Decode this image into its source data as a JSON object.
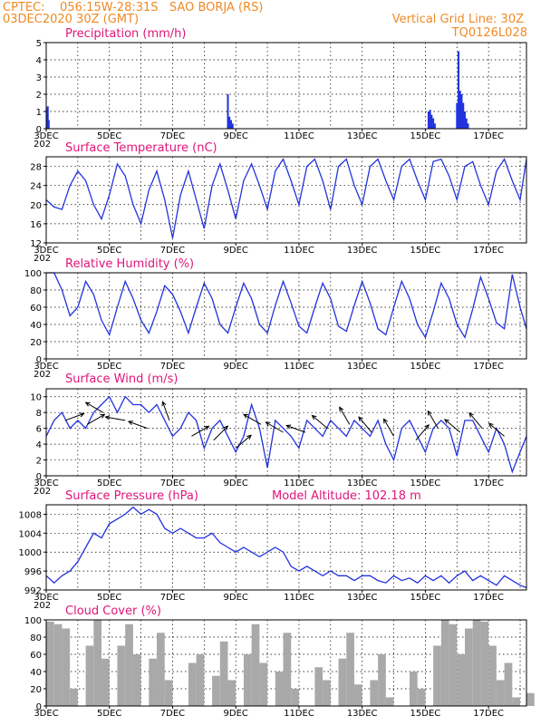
{
  "header": {
    "left_line1": "CPTEC:    056:15W-28:31S   SAO BORJA (RS)",
    "left_line2": "03DEC2020 30Z (GMT)",
    "right_line1": "Vertical Grid Line: 30Z",
    "right_line2": "TQ0126L028"
  },
  "x_axis": {
    "ticks": [
      "3DEC",
      "5DEC",
      "7DEC",
      "9DEC",
      "11DEC",
      "13DEC",
      "15DEC",
      "17DEC"
    ],
    "tick_days": [
      0,
      2,
      4,
      6,
      8,
      10,
      12,
      14
    ],
    "range_days": [
      0,
      15.2
    ],
    "grid_every_days": 1,
    "year_fragment": "202"
  },
  "colors": {
    "series": "#2233dd",
    "cloud": "#a9a9a9",
    "title": "#e0157a",
    "header": "#f08a24"
  },
  "chart_data": [
    {
      "id": "precip",
      "type": "bar",
      "title": "Precipitation (mm/h)",
      "ylim": [
        0,
        5
      ],
      "yticks": [
        0,
        1,
        2,
        3,
        4,
        5
      ],
      "x": [
        0.02,
        0.05,
        0.08,
        5.75,
        5.8,
        5.85,
        5.9,
        12.1,
        12.15,
        12.2,
        12.25,
        12.3,
        13.0,
        13.05,
        13.1,
        13.15,
        13.2,
        13.25,
        13.3,
        13.35
      ],
      "values": [
        1.2,
        1.3,
        0.5,
        2.0,
        0.7,
        0.5,
        0.3,
        1.0,
        1.1,
        0.8,
        0.6,
        0.3,
        1.5,
        4.5,
        2.2,
        2.0,
        1.5,
        1.0,
        0.6,
        0.3
      ]
    },
    {
      "id": "temp",
      "type": "line",
      "title": "Surface Temperature (nC)",
      "ylim": [
        12,
        30
      ],
      "yticks": [
        12,
        16,
        20,
        24,
        28
      ],
      "x": [
        0,
        0.25,
        0.5,
        0.75,
        1,
        1.25,
        1.5,
        1.75,
        2,
        2.25,
        2.5,
        2.75,
        3,
        3.25,
        3.5,
        3.75,
        4,
        4.25,
        4.5,
        4.75,
        5,
        5.25,
        5.5,
        5.75,
        6,
        6.25,
        6.5,
        6.75,
        7,
        7.25,
        7.5,
        7.75,
        8,
        8.25,
        8.5,
        8.75,
        9,
        9.25,
        9.5,
        9.75,
        10,
        10.25,
        10.5,
        10.75,
        11,
        11.25,
        11.5,
        11.75,
        12,
        12.25,
        12.5,
        12.75,
        13,
        13.25,
        13.5,
        13.75,
        14,
        14.25,
        14.5,
        14.75,
        15,
        15.2
      ],
      "values": [
        21,
        19.5,
        19,
        24,
        27,
        25,
        20,
        17,
        22,
        28.5,
        26,
        20,
        16,
        23,
        27,
        21,
        13,
        22,
        27,
        21,
        15,
        24,
        28.5,
        23,
        17,
        25,
        28.5,
        24,
        19,
        27,
        29.5,
        25,
        20,
        28,
        29.5,
        25,
        19,
        28,
        29.5,
        24,
        20,
        28,
        29.5,
        25,
        21,
        28,
        29.5,
        25,
        21,
        29,
        29.5,
        26,
        21,
        28,
        29,
        24,
        20,
        27,
        29.5,
        25,
        21,
        29.5
      ]
    },
    {
      "id": "rh",
      "type": "line",
      "title": "Relative Humidity (%)",
      "ylim": [
        0,
        100
      ],
      "yticks": [
        0,
        20,
        40,
        60,
        80,
        100
      ],
      "x": [
        0,
        0.25,
        0.5,
        0.75,
        1,
        1.25,
        1.5,
        1.75,
        2,
        2.25,
        2.5,
        2.75,
        3,
        3.25,
        3.5,
        3.75,
        4,
        4.25,
        4.5,
        4.75,
        5,
        5.25,
        5.5,
        5.75,
        6,
        6.25,
        6.5,
        6.75,
        7,
        7.25,
        7.5,
        7.75,
        8,
        8.25,
        8.5,
        8.75,
        9,
        9.25,
        9.5,
        9.75,
        10,
        10.25,
        10.5,
        10.75,
        11,
        11.25,
        11.5,
        11.75,
        12,
        12.25,
        12.5,
        12.75,
        13,
        13.25,
        13.5,
        13.75,
        14,
        14.25,
        14.5,
        14.75,
        15,
        15.2
      ],
      "values": [
        100,
        100,
        80,
        50,
        60,
        90,
        75,
        45,
        28,
        60,
        90,
        70,
        45,
        30,
        55,
        85,
        75,
        55,
        30,
        60,
        88,
        70,
        40,
        30,
        60,
        88,
        70,
        40,
        30,
        62,
        90,
        65,
        38,
        30,
        60,
        88,
        70,
        38,
        32,
        62,
        90,
        65,
        35,
        28,
        60,
        90,
        70,
        40,
        25,
        55,
        88,
        70,
        40,
        25,
        58,
        95,
        70,
        42,
        35,
        98,
        60,
        35
      ]
    },
    {
      "id": "wind",
      "type": "line",
      "title": "Surface Wind (m/s)",
      "ylim": [
        0,
        11
      ],
      "yticks": [
        0,
        2,
        4,
        6,
        8,
        10
      ],
      "x": [
        0,
        0.25,
        0.5,
        0.75,
        1,
        1.25,
        1.5,
        1.75,
        2,
        2.25,
        2.5,
        2.75,
        3,
        3.25,
        3.5,
        3.75,
        4,
        4.25,
        4.5,
        4.75,
        5,
        5.25,
        5.5,
        5.75,
        6,
        6.25,
        6.5,
        6.75,
        7,
        7.25,
        7.5,
        7.75,
        8,
        8.25,
        8.5,
        8.75,
        9,
        9.25,
        9.5,
        9.75,
        10,
        10.25,
        10.5,
        10.75,
        11,
        11.25,
        11.5,
        11.75,
        12,
        12.25,
        12.5,
        12.75,
        13,
        13.25,
        13.5,
        13.75,
        14,
        14.25,
        14.5,
        14.75,
        15,
        15.2
      ],
      "values": [
        5,
        7,
        8,
        6,
        7,
        6,
        8,
        9,
        10,
        8,
        10,
        9,
        9,
        8,
        9,
        7,
        5,
        6,
        8,
        7,
        3.5,
        6,
        7,
        5,
        3,
        5,
        9,
        6,
        1,
        7,
        6,
        5,
        3.5,
        7,
        6,
        5,
        7,
        6,
        5,
        7,
        6,
        5,
        7,
        4,
        2,
        6,
        7,
        5,
        3,
        6,
        7,
        6,
        2.5,
        7,
        7,
        5,
        3,
        6,
        4,
        0.5,
        3,
        5
      ]
    },
    {
      "id": "pressure",
      "type": "line",
      "title": "Surface Pressure (hPa)",
      "annotation": "Model Altitude: 102.18 m",
      "ylim": [
        992,
        1010
      ],
      "yticks": [
        992,
        996,
        1000,
        1004,
        1008
      ],
      "x": [
        0,
        0.25,
        0.5,
        0.75,
        1,
        1.25,
        1.5,
        1.75,
        2,
        2.25,
        2.5,
        2.75,
        3,
        3.25,
        3.5,
        3.75,
        4,
        4.25,
        4.5,
        4.75,
        5,
        5.25,
        5.5,
        5.75,
        6,
        6.25,
        6.5,
        6.75,
        7,
        7.25,
        7.5,
        7.75,
        8,
        8.25,
        8.5,
        8.75,
        9,
        9.25,
        9.5,
        9.75,
        10,
        10.25,
        10.5,
        10.75,
        11,
        11.25,
        11.5,
        11.75,
        12,
        12.25,
        12.5,
        12.75,
        13,
        13.25,
        13.5,
        13.75,
        14,
        14.25,
        14.5,
        14.75,
        15,
        15.2
      ],
      "values": [
        995,
        993.5,
        995,
        996,
        998,
        1001,
        1004,
        1003,
        1006,
        1007,
        1008,
        1009.5,
        1008,
        1009,
        1008,
        1005,
        1004,
        1005,
        1004,
        1003,
        1003,
        1004,
        1002,
        1001,
        1000,
        1001,
        1000,
        999,
        1000,
        1001,
        1000,
        997,
        996,
        997,
        996,
        995,
        996,
        995,
        995,
        994,
        995,
        995,
        994,
        993.5,
        995,
        994,
        994.5,
        993.5,
        995,
        994,
        995,
        993.5,
        995,
        996,
        994,
        995,
        994,
        993,
        995,
        994,
        993,
        992.5
      ]
    },
    {
      "id": "cloud",
      "type": "area",
      "title": "Cloud Cover (%)",
      "ylim": [
        0,
        100
      ],
      "yticks": [
        0,
        20,
        40,
        60,
        80,
        100
      ],
      "x": [
        0,
        0.25,
        0.5,
        0.75,
        1,
        1.25,
        1.5,
        1.75,
        2,
        2.25,
        2.5,
        2.75,
        3,
        3.25,
        3.5,
        3.75,
        4,
        4.25,
        4.5,
        4.75,
        5,
        5.25,
        5.5,
        5.75,
        6,
        6.25,
        6.5,
        6.75,
        7,
        7.25,
        7.5,
        7.75,
        8,
        8.25,
        8.5,
        8.75,
        9,
        9.25,
        9.5,
        9.75,
        10,
        10.25,
        10.5,
        10.75,
        11,
        11.25,
        11.5,
        11.75,
        12,
        12.25,
        12.5,
        12.75,
        13,
        13.25,
        13.5,
        13.75,
        14,
        14.25,
        14.5,
        14.75,
        15,
        15.2
      ],
      "values": [
        98,
        95,
        90,
        20,
        0,
        70,
        100,
        55,
        0,
        70,
        95,
        60,
        0,
        55,
        85,
        30,
        0,
        0,
        50,
        60,
        0,
        35,
        75,
        30,
        0,
        60,
        95,
        50,
        0,
        40,
        85,
        20,
        0,
        0,
        45,
        30,
        0,
        55,
        85,
        25,
        0,
        30,
        60,
        10,
        0,
        0,
        40,
        20,
        0,
        70,
        100,
        95,
        60,
        90,
        100,
        98,
        70,
        30,
        50,
        10,
        0,
        15
      ]
    }
  ],
  "wind_arrows": {
    "note_units": "direction in degrees the arrow points (math convention), length scaled",
    "x": [
      0.6,
      1.3,
      1.8,
      2.5,
      3.2,
      3.9,
      4.6,
      5.3,
      6.0,
      6.8,
      7.5,
      8.2,
      8.9,
      9.6,
      10.3,
      11.0,
      11.7,
      12.4,
      13.1,
      13.8,
      14.5
    ],
    "y": [
      7,
      6.5,
      8,
      7,
      6,
      7,
      5,
      4.5,
      3.5,
      6.5,
      5.5,
      5.5,
      6,
      6.5,
      5.5,
      5,
      4.5,
      6,
      5.5,
      6,
      5
    ],
    "dir": [
      20,
      30,
      150,
      170,
      160,
      110,
      30,
      45,
      40,
      150,
      150,
      160,
      140,
      120,
      130,
      120,
      50,
      120,
      140,
      130,
      140
    ]
  }
}
